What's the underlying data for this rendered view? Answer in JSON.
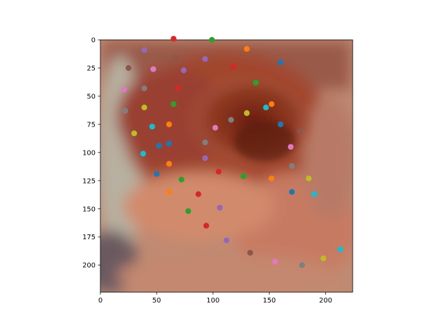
{
  "chart_data": {
    "type": "scatter",
    "title": "",
    "xlabel": "",
    "ylabel": "",
    "background_image": "ear-photo",
    "xlim": [
      0,
      224
    ],
    "ylim": [
      224,
      0
    ],
    "x_ticks": [
      0,
      50,
      100,
      150,
      200
    ],
    "y_ticks": [
      0,
      25,
      50,
      75,
      100,
      125,
      150,
      175,
      200
    ],
    "grid": false,
    "legend": "none",
    "colors": {
      "blue": "#1f77b4",
      "orange": "#ff7f0e",
      "green": "#2ca02c",
      "red": "#d62728",
      "purple": "#9467bd",
      "brown": "#8c564b",
      "pink": "#e377c2",
      "gray": "#7f7f7f",
      "olive": "#bcbd22",
      "cyan": "#17becf"
    },
    "points": [
      {
        "x": 65,
        "y": -1,
        "c": "red"
      },
      {
        "x": 99,
        "y": 0,
        "c": "green"
      },
      {
        "x": 130,
        "y": 8,
        "c": "orange"
      },
      {
        "x": 39,
        "y": 9,
        "c": "purple"
      },
      {
        "x": 67,
        "y": 16,
        "c": "brown"
      },
      {
        "x": 93,
        "y": 17,
        "c": "purple"
      },
      {
        "x": 160,
        "y": 20,
        "c": "blue"
      },
      {
        "x": 118,
        "y": 24,
        "c": "red"
      },
      {
        "x": 25,
        "y": 25,
        "c": "brown"
      },
      {
        "x": 47,
        "y": 26,
        "c": "pink"
      },
      {
        "x": 74,
        "y": 27,
        "c": "purple"
      },
      {
        "x": 138,
        "y": 38,
        "c": "green"
      },
      {
        "x": 39,
        "y": 43,
        "c": "gray"
      },
      {
        "x": 69,
        "y": 43,
        "c": "red"
      },
      {
        "x": 21,
        "y": 44,
        "c": "pink"
      },
      {
        "x": 152,
        "y": 57,
        "c": "orange"
      },
      {
        "x": 65,
        "y": 57,
        "c": "green"
      },
      {
        "x": 39,
        "y": 60,
        "c": "olive"
      },
      {
        "x": 147,
        "y": 60,
        "c": "cyan"
      },
      {
        "x": 22,
        "y": 63,
        "c": "gray"
      },
      {
        "x": 130,
        "y": 65,
        "c": "olive"
      },
      {
        "x": 116,
        "y": 71,
        "c": "gray"
      },
      {
        "x": 160,
        "y": 75,
        "c": "blue"
      },
      {
        "x": 61,
        "y": 75,
        "c": "orange"
      },
      {
        "x": 46,
        "y": 77,
        "c": "cyan"
      },
      {
        "x": 102,
        "y": 78,
        "c": "pink"
      },
      {
        "x": 177,
        "y": 81,
        "c": "brown"
      },
      {
        "x": 30,
        "y": 83,
        "c": "olive"
      },
      {
        "x": 93,
        "y": 91,
        "c": "gray"
      },
      {
        "x": 61,
        "y": 92,
        "c": "blue"
      },
      {
        "x": 52,
        "y": 94,
        "c": "blue"
      },
      {
        "x": 169,
        "y": 95,
        "c": "pink"
      },
      {
        "x": 38,
        "y": 101,
        "c": "cyan"
      },
      {
        "x": 93,
        "y": 105,
        "c": "purple"
      },
      {
        "x": 61,
        "y": 110,
        "c": "orange"
      },
      {
        "x": 170,
        "y": 112,
        "c": "gray"
      },
      {
        "x": 105,
        "y": 117,
        "c": "red"
      },
      {
        "x": 50,
        "y": 119,
        "c": "blue"
      },
      {
        "x": 127,
        "y": 121,
        "c": "green"
      },
      {
        "x": 185,
        "y": 123,
        "c": "olive"
      },
      {
        "x": 152,
        "y": 123,
        "c": "orange"
      },
      {
        "x": 72,
        "y": 124,
        "c": "green"
      },
      {
        "x": 61,
        "y": 135,
        "c": "orange"
      },
      {
        "x": 170,
        "y": 135,
        "c": "blue"
      },
      {
        "x": 87,
        "y": 137,
        "c": "red"
      },
      {
        "x": 190,
        "y": 137,
        "c": "cyan"
      },
      {
        "x": 106,
        "y": 149,
        "c": "purple"
      },
      {
        "x": 78,
        "y": 152,
        "c": "green"
      },
      {
        "x": 94,
        "y": 165,
        "c": "red"
      },
      {
        "x": 112,
        "y": 178,
        "c": "purple"
      },
      {
        "x": 213,
        "y": 186,
        "c": "cyan"
      },
      {
        "x": 133,
        "y": 189,
        "c": "brown"
      },
      {
        "x": 198,
        "y": 194,
        "c": "olive"
      },
      {
        "x": 155,
        "y": 197,
        "c": "pink"
      },
      {
        "x": 179,
        "y": 200,
        "c": "gray"
      }
    ]
  }
}
